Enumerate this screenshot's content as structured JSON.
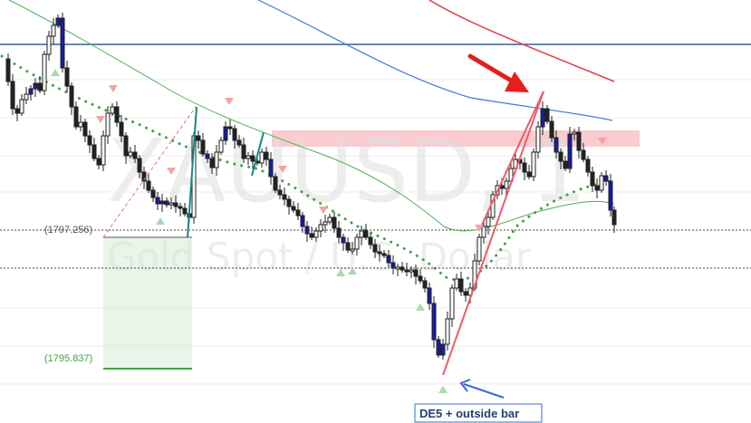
{
  "chart_data": {
    "type": "candlestick",
    "watermark": {
      "symbol": "XAUUSD, 1",
      "description": "Gold Spot / U.S. Dollar"
    },
    "levels": [
      {
        "label": "(1797.256)",
        "value": 1797.256,
        "style": "dotted",
        "color": "#555555"
      },
      {
        "label": "(1795.837)",
        "value": 1795.837,
        "style": "solid",
        "color": "#43a047"
      }
    ],
    "annotation": {
      "text": "DE5 + outside bar"
    },
    "colors": {
      "up_candle": "#ffffff",
      "down_candle": "#222222",
      "highlight_candle": "#1a1aa8",
      "ma_fast": "#4caf50",
      "ma_mid": "#3f7bd8",
      "ma_slow": "#e03b4a",
      "signal_dots": "#43a047",
      "resistance_zone": "#f5a0a8",
      "down_marker": "#f4a3a3",
      "up_marker": "#a6dba9",
      "arrow_red": "#e51e1e",
      "arrow_blue": "#3a6ad4"
    }
  }
}
